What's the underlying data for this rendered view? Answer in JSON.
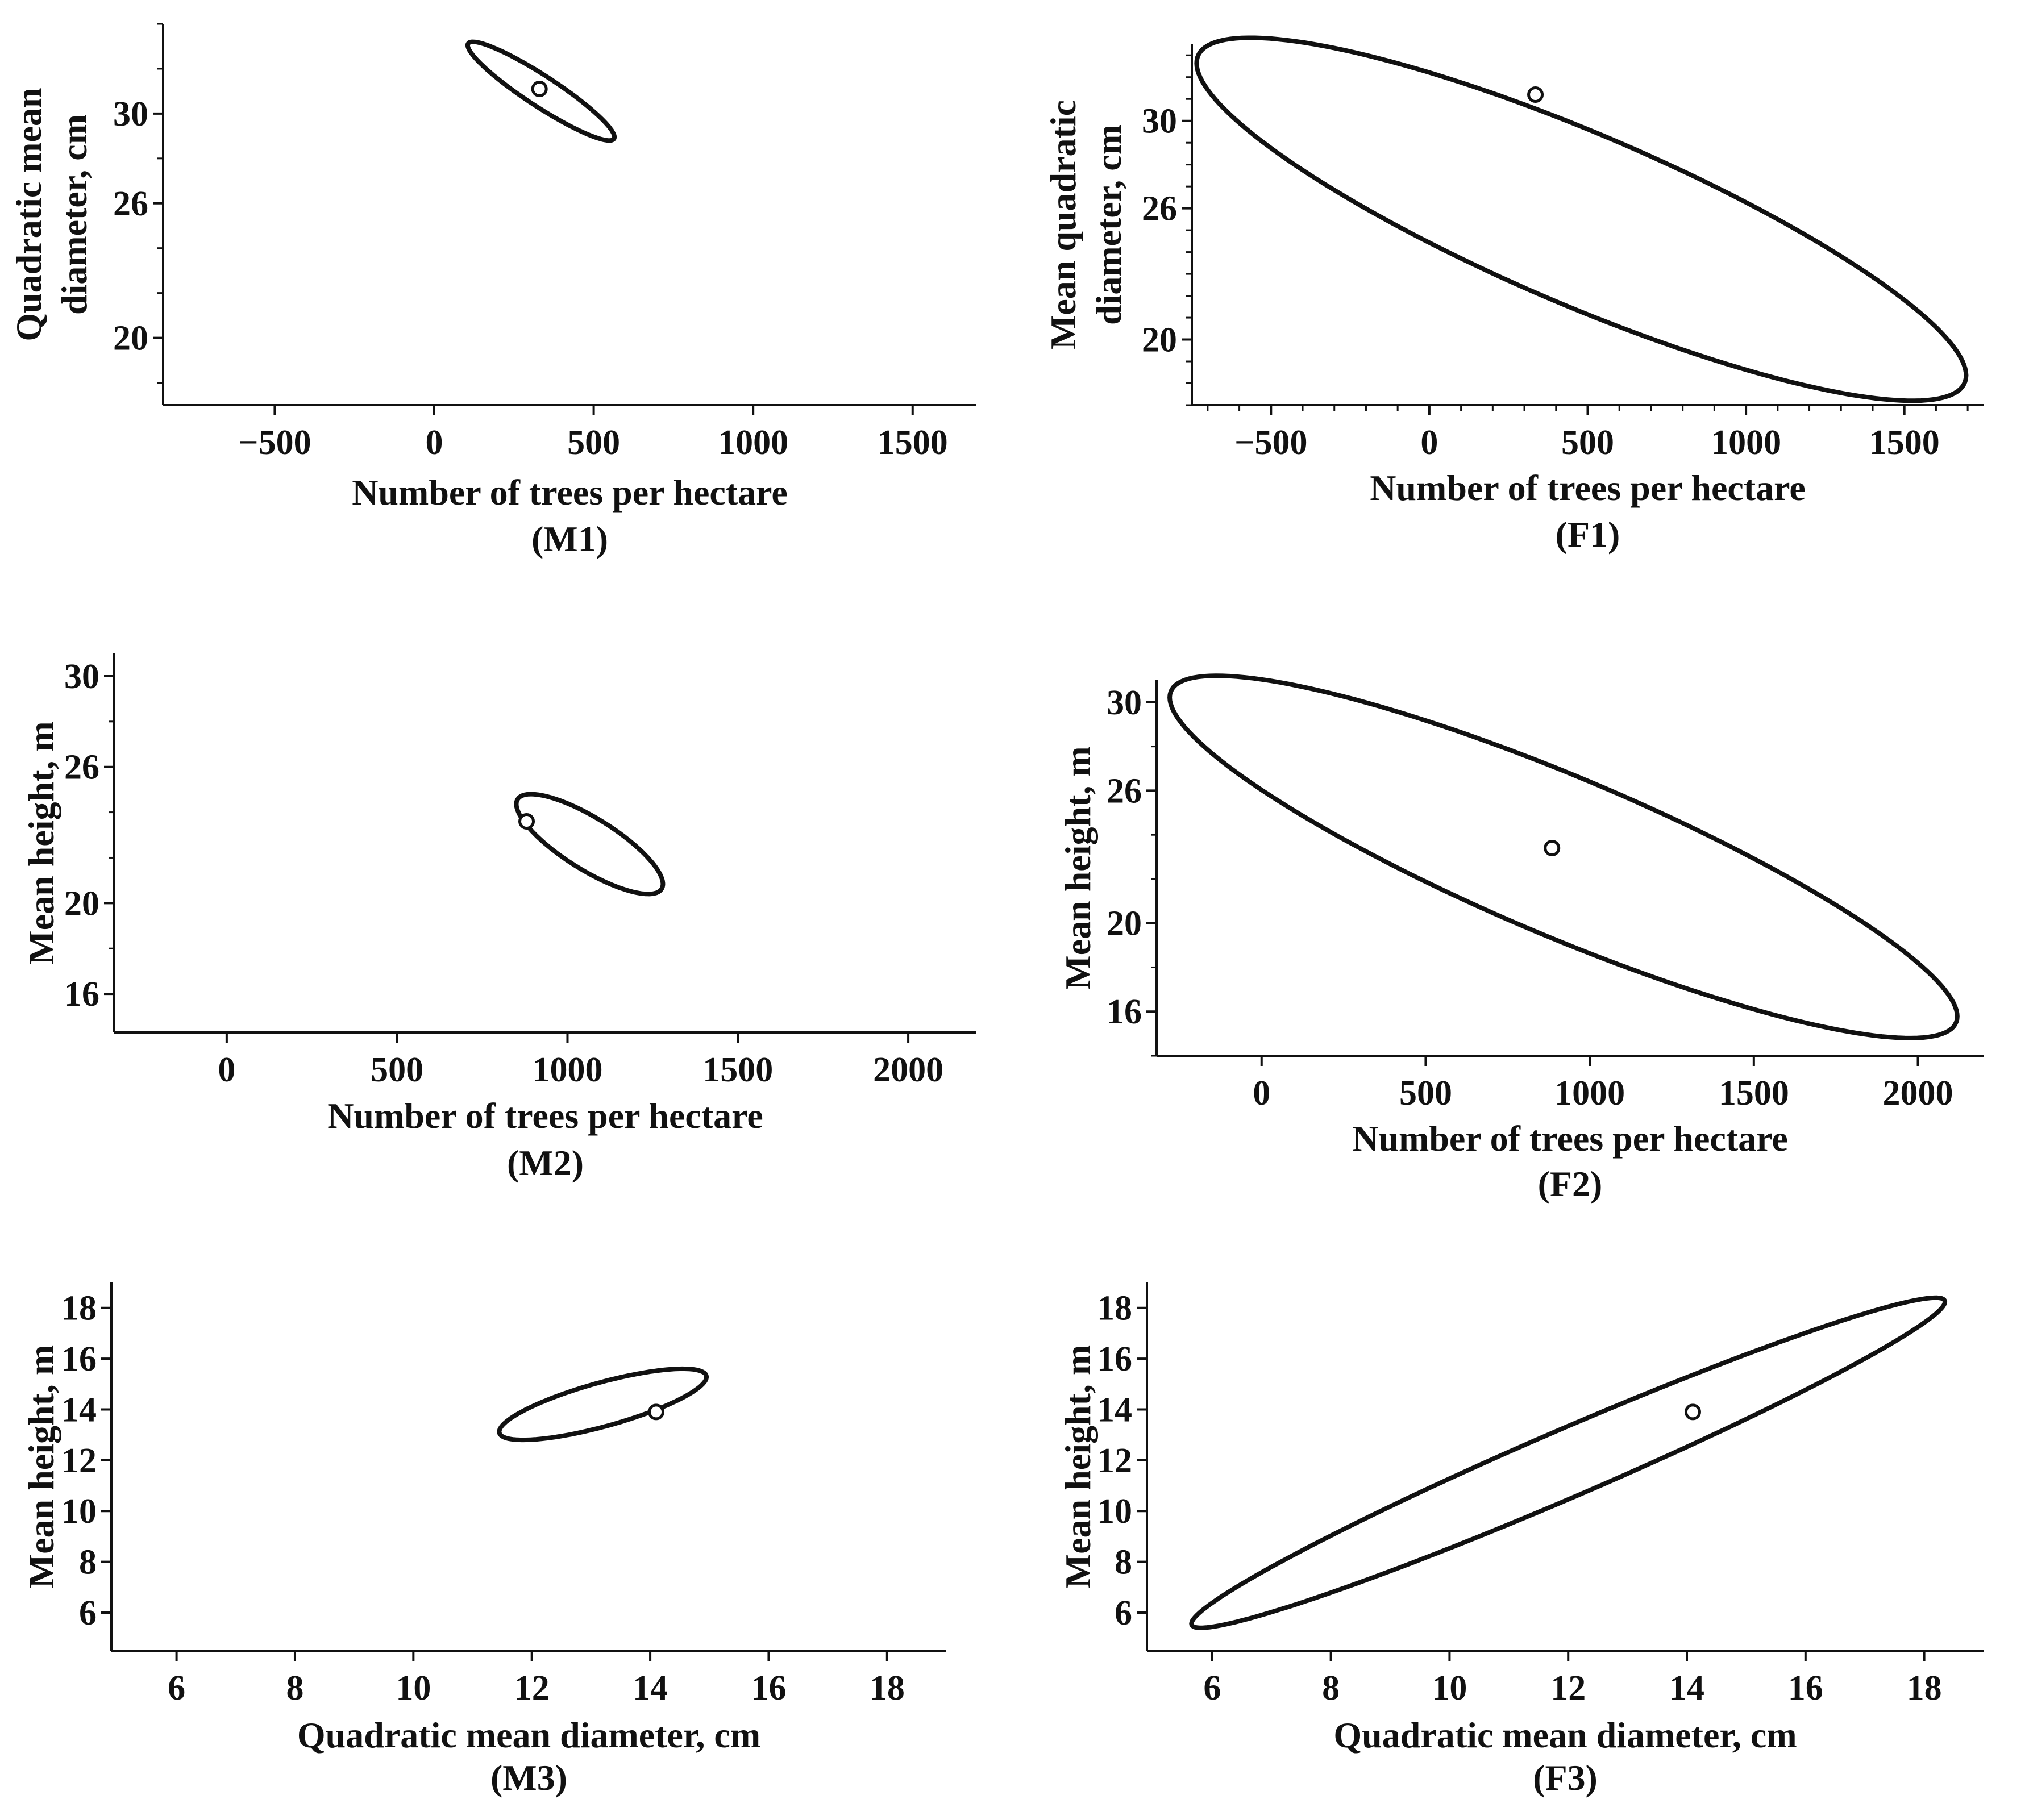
{
  "chart_data": [
    {
      "id": "M1",
      "type": "scatter",
      "panel_label": "(M1)",
      "xlabel": "Number of trees per hectare",
      "ylabel": [
        "Quadratic mean",
        "diameter, cm"
      ],
      "xlim": [
        -850,
        1700
      ],
      "ylim": [
        17,
        34
      ],
      "xticks": [
        -500,
        0,
        500,
        1000,
        1500
      ],
      "xtick_labels": [
        "−500",
        "0",
        "500",
        "1000",
        "1500"
      ],
      "yticks": [
        20,
        26,
        30
      ],
      "ytick_labels": [
        "20",
        "26",
        "30"
      ],
      "y_minor_step": 2,
      "x_minor_step": null,
      "point": {
        "x": 330,
        "y": 31.1
      },
      "ellipse": {
        "cx": 335,
        "cy": 31.0,
        "x_extent": 230,
        "y_extent": 2.2,
        "corr": -0.93
      }
    },
    {
      "id": "F1",
      "type": "scatter",
      "panel_label": "(F1)",
      "xlabel": "Number of trees per hectare",
      "ylabel": [
        "Mean quadratic",
        "diameter, cm"
      ],
      "xlim": [
        -750,
        1750
      ],
      "ylim": [
        17,
        33.5
      ],
      "xticks": [
        -500,
        0,
        500,
        1000,
        1500
      ],
      "xtick_labels": [
        "−500",
        "0",
        "500",
        "1000",
        "1500"
      ],
      "yticks": [
        20,
        26,
        30
      ],
      "ytick_labels": [
        "20",
        "26",
        "30"
      ],
      "y_minor_step": 1,
      "x_minor_step": 100,
      "point": {
        "x": 335,
        "y": 31.2
      },
      "ellipse": {
        "cx": 480,
        "cy": 25.5,
        "x_extent": 1215,
        "y_extent": 8.3,
        "corr": -0.86
      }
    },
    {
      "id": "M2",
      "type": "scatter",
      "panel_label": "(M2)",
      "xlabel": "Number of trees per hectare",
      "ylabel": [
        "Mean height, m"
      ],
      "xlim": [
        -330,
        2200
      ],
      "ylim": [
        14.3,
        31
      ],
      "xticks": [
        0,
        500,
        1000,
        1500,
        2000
      ],
      "xtick_labels": [
        "0",
        "500",
        "1000",
        "1500",
        "2000"
      ],
      "yticks": [
        16,
        20,
        26,
        30
      ],
      "ytick_labels": [
        "16",
        "20",
        "26",
        "30"
      ],
      "y_minor_step": 2,
      "x_minor_step": null,
      "point": {
        "x": 880,
        "y": 23.6
      },
      "ellipse": {
        "cx": 1065,
        "cy": 22.6,
        "x_extent": 215,
        "y_extent": 2.2,
        "corr": -0.8
      }
    },
    {
      "id": "F2",
      "type": "scatter",
      "panel_label": "(F2)",
      "xlabel": "Number of trees per hectare",
      "ylabel": [
        "Mean height, m"
      ],
      "xlim": [
        -320,
        2200
      ],
      "ylim": [
        14,
        31
      ],
      "xticks": [
        0,
        500,
        1000,
        1500,
        2000
      ],
      "xtick_labels": [
        "0",
        "500",
        "1000",
        "1500",
        "2000"
      ],
      "yticks": [
        16,
        20,
        26,
        30
      ],
      "ytick_labels": [
        "16",
        "20",
        "26",
        "30"
      ],
      "y_minor_step": 2,
      "x_minor_step": null,
      "point": {
        "x": 885,
        "y": 23.4
      },
      "ellipse": {
        "cx": 920,
        "cy": 23.0,
        "x_extent": 1200,
        "y_extent": 8.2,
        "corr": -0.88
      }
    },
    {
      "id": "M3",
      "type": "scatter",
      "panel_label": "(M3)",
      "xlabel": "Quadratic mean diameter, cm",
      "ylabel": [
        "Mean height, m"
      ],
      "xlim": [
        4.9,
        19
      ],
      "ylim": [
        4.5,
        19
      ],
      "xticks": [
        6,
        8,
        10,
        12,
        14,
        16,
        18
      ],
      "xtick_labels": [
        "6",
        "8",
        "10",
        "12",
        "14",
        "16",
        "18"
      ],
      "yticks": [
        6,
        8,
        10,
        12,
        14,
        16,
        18
      ],
      "ytick_labels": [
        "6",
        "8",
        "10",
        "12",
        "14",
        "16",
        "18"
      ],
      "y_minor_step": null,
      "x_minor_step": null,
      "point": {
        "x": 14.1,
        "y": 13.9
      },
      "ellipse": {
        "cx": 13.2,
        "cy": 14.2,
        "x_extent": 1.75,
        "y_extent": 1.4,
        "corr": 0.77
      }
    },
    {
      "id": "F3",
      "type": "scatter",
      "panel_label": "(F3)",
      "xlabel": "Quadratic mean diameter, cm",
      "ylabel": [
        "Mean height, m"
      ],
      "xlim": [
        4.9,
        19
      ],
      "ylim": [
        4.5,
        19
      ],
      "xticks": [
        6,
        8,
        10,
        12,
        14,
        16,
        18
      ],
      "xtick_labels": [
        "6",
        "8",
        "10",
        "12",
        "14",
        "16",
        "18"
      ],
      "yticks": [
        6,
        8,
        10,
        12,
        14,
        16,
        18
      ],
      "ytick_labels": [
        "6",
        "8",
        "10",
        "12",
        "14",
        "16",
        "18"
      ],
      "y_minor_step": null,
      "x_minor_step": null,
      "point": {
        "x": 14.1,
        "y": 13.9
      },
      "ellipse": {
        "cx": 12.0,
        "cy": 11.9,
        "x_extent": 6.35,
        "y_extent": 6.5,
        "corr": 0.975
      }
    }
  ]
}
